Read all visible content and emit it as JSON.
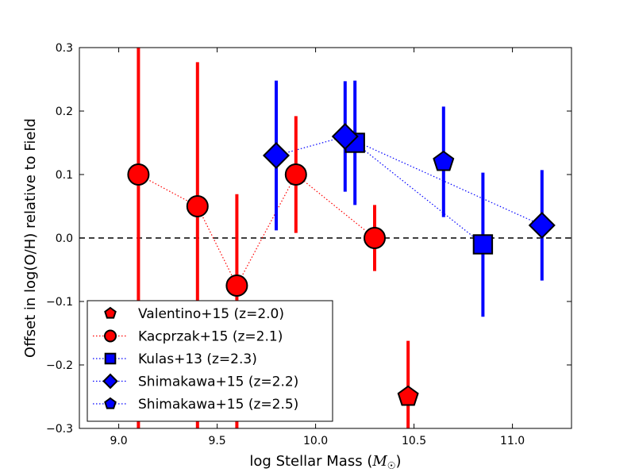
{
  "chart_data": {
    "type": "scatter",
    "title": "",
    "xlabel": "log Stellar Mass (",
    "xlabel_math": "M",
    "xlabel_sub": "☉",
    "xlabel_close": ")",
    "ylabel": "Offset in log(O/H) relative to Field",
    "xlim": [
      8.8,
      11.3
    ],
    "ylim": [
      -0.3,
      0.3
    ],
    "x_ticks": [
      9.0,
      9.5,
      10.0,
      10.5,
      11.0
    ],
    "x_tick_labels": [
      "9.0",
      "9.5",
      "10.0",
      "10.5",
      "11.0"
    ],
    "y_ticks": [
      -0.3,
      -0.2,
      -0.1,
      0.0,
      0.1,
      0.2,
      0.3
    ],
    "y_tick_labels": [
      "−0.3",
      "−0.2",
      "−0.1",
      "0.0",
      "0.1",
      "0.2",
      "0.3"
    ],
    "reference_line": {
      "y": 0.0,
      "style": "dashed",
      "color": "#000000"
    },
    "legend_position": "lower-left",
    "series": [
      {
        "name": "Valentino+15 (z=2.0)",
        "marker": "pentagon",
        "color": "#ff0000",
        "connect": false,
        "points": [
          {
            "x": 10.47,
            "y": -0.25,
            "err_low": -0.31,
            "err_high": -0.162
          }
        ]
      },
      {
        "name": "Kacprzak+15 (z=2.1)",
        "marker": "circle",
        "color": "#ff0000",
        "connect": true,
        "points": [
          {
            "x": 9.1,
            "y": 0.1,
            "err_low": -0.31,
            "err_high": 0.31
          },
          {
            "x": 9.4,
            "y": 0.05,
            "err_low": -0.31,
            "err_high": 0.277
          },
          {
            "x": 9.6,
            "y": -0.075,
            "err_low": -0.31,
            "err_high": 0.069
          },
          {
            "x": 9.9,
            "y": 0.1,
            "err_low": 0.008,
            "err_high": 0.192
          },
          {
            "x": 10.3,
            "y": 0.0,
            "err_low": -0.052,
            "err_high": 0.052
          }
        ]
      },
      {
        "name": "Kulas+13 (z=2.3)",
        "marker": "square",
        "color": "#0000ff",
        "connect": true,
        "points": [
          {
            "x": 10.2,
            "y": 0.15,
            "err_low": 0.052,
            "err_high": 0.248
          },
          {
            "x": 10.85,
            "y": -0.01,
            "err_low": -0.124,
            "err_high": 0.103
          }
        ]
      },
      {
        "name": "Shimakawa+15 (z=2.2)",
        "marker": "diamond",
        "color": "#0000ff",
        "connect": true,
        "points": [
          {
            "x": 9.8,
            "y": 0.13,
            "err_low": 0.012,
            "err_high": 0.248
          },
          {
            "x": 10.15,
            "y": 0.16,
            "err_low": 0.073,
            "err_high": 0.247
          },
          {
            "x": 11.15,
            "y": 0.02,
            "err_low": -0.067,
            "err_high": 0.107
          }
        ]
      },
      {
        "name": "Shimakawa+15 (z=2.5)",
        "marker": "pentagon",
        "color": "#0000ff",
        "connect": true,
        "points": [
          {
            "x": 10.65,
            "y": 0.12,
            "err_low": 0.033,
            "err_high": 0.207
          }
        ]
      }
    ]
  }
}
